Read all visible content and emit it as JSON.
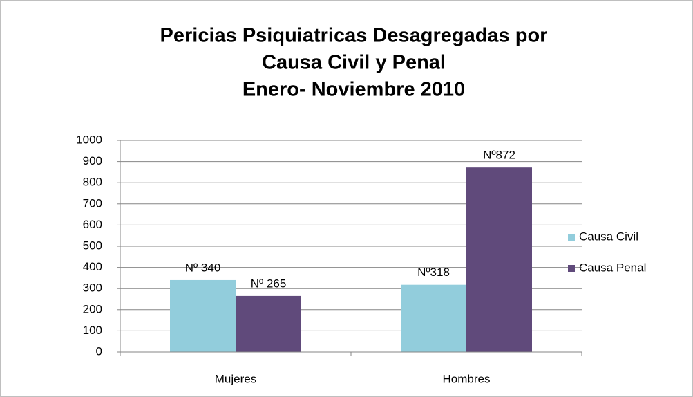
{
  "chart_data": {
    "type": "bar",
    "title": [
      "Pericias Psiquiatricas Desagregadas por",
      "Causa Civil y Penal",
      "Enero- Noviembre 2010"
    ],
    "categories": [
      "Mujeres",
      "Hombres"
    ],
    "series": [
      {
        "name": "Causa Civil",
        "color": "#92cddc",
        "values": [
          340,
          318
        ],
        "value_labels": [
          "Nº 340",
          "Nº318"
        ]
      },
      {
        "name": "Causa Penal",
        "color": "#604a7b",
        "values": [
          265,
          872
        ],
        "value_labels": [
          "Nº 265",
          "Nº872"
        ]
      }
    ],
    "ylim": [
      0,
      1000
    ],
    "yticks": [
      0,
      100,
      200,
      300,
      400,
      500,
      600,
      700,
      800,
      900,
      1000
    ],
    "grid": true,
    "legend": "right"
  }
}
